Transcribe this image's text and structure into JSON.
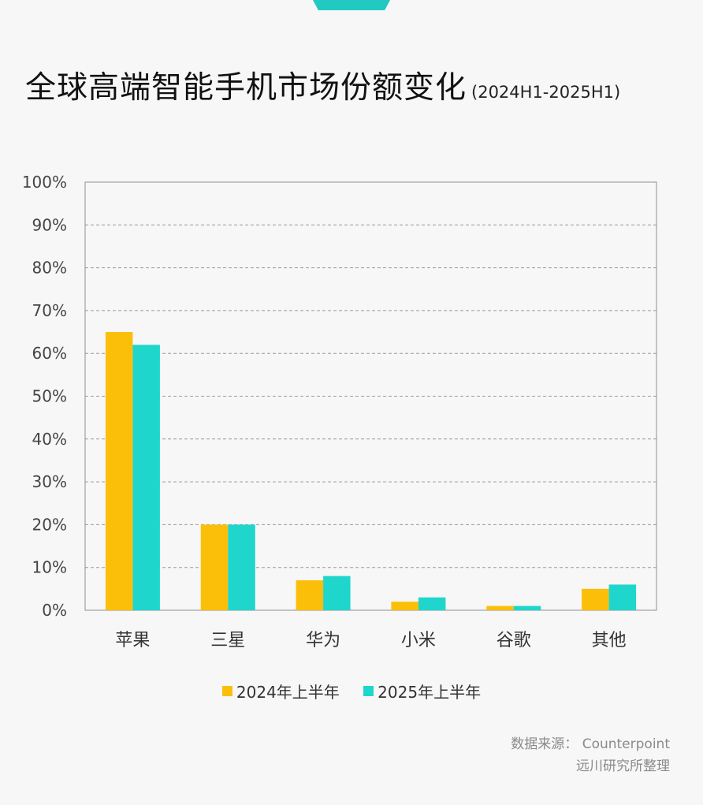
{
  "title": "全球高端智能手机市场份额变化",
  "subtitle": "(2024H1-2025H1)",
  "source": {
    "line1": "数据来源： Counterpoint",
    "line2": "远川研究所整理"
  },
  "colors": {
    "series_2024": "#fbbf0a",
    "series_2025": "#1fd6cc",
    "top_tab": "#21c9c2"
  },
  "chart_data": {
    "type": "bar",
    "title": "全球高端智能手机市场份额变化",
    "subtitle": "(2024H1-2025H1)",
    "categories": [
      "苹果",
      "三星",
      "华为",
      "小米",
      "谷歌",
      "其他"
    ],
    "series": [
      {
        "name": "2024年上半年",
        "values": [
          65,
          20,
          7,
          2,
          1,
          5
        ]
      },
      {
        "name": "2025年上半年",
        "values": [
          62,
          20,
          8,
          3,
          1,
          6
        ]
      }
    ],
    "ylim": [
      0,
      100
    ],
    "yticks": [
      "0%",
      "10%",
      "20%",
      "30%",
      "40%",
      "50%",
      "60%",
      "70%",
      "80%",
      "90%",
      "100%"
    ],
    "grid": true,
    "legend_position": "bottom"
  }
}
